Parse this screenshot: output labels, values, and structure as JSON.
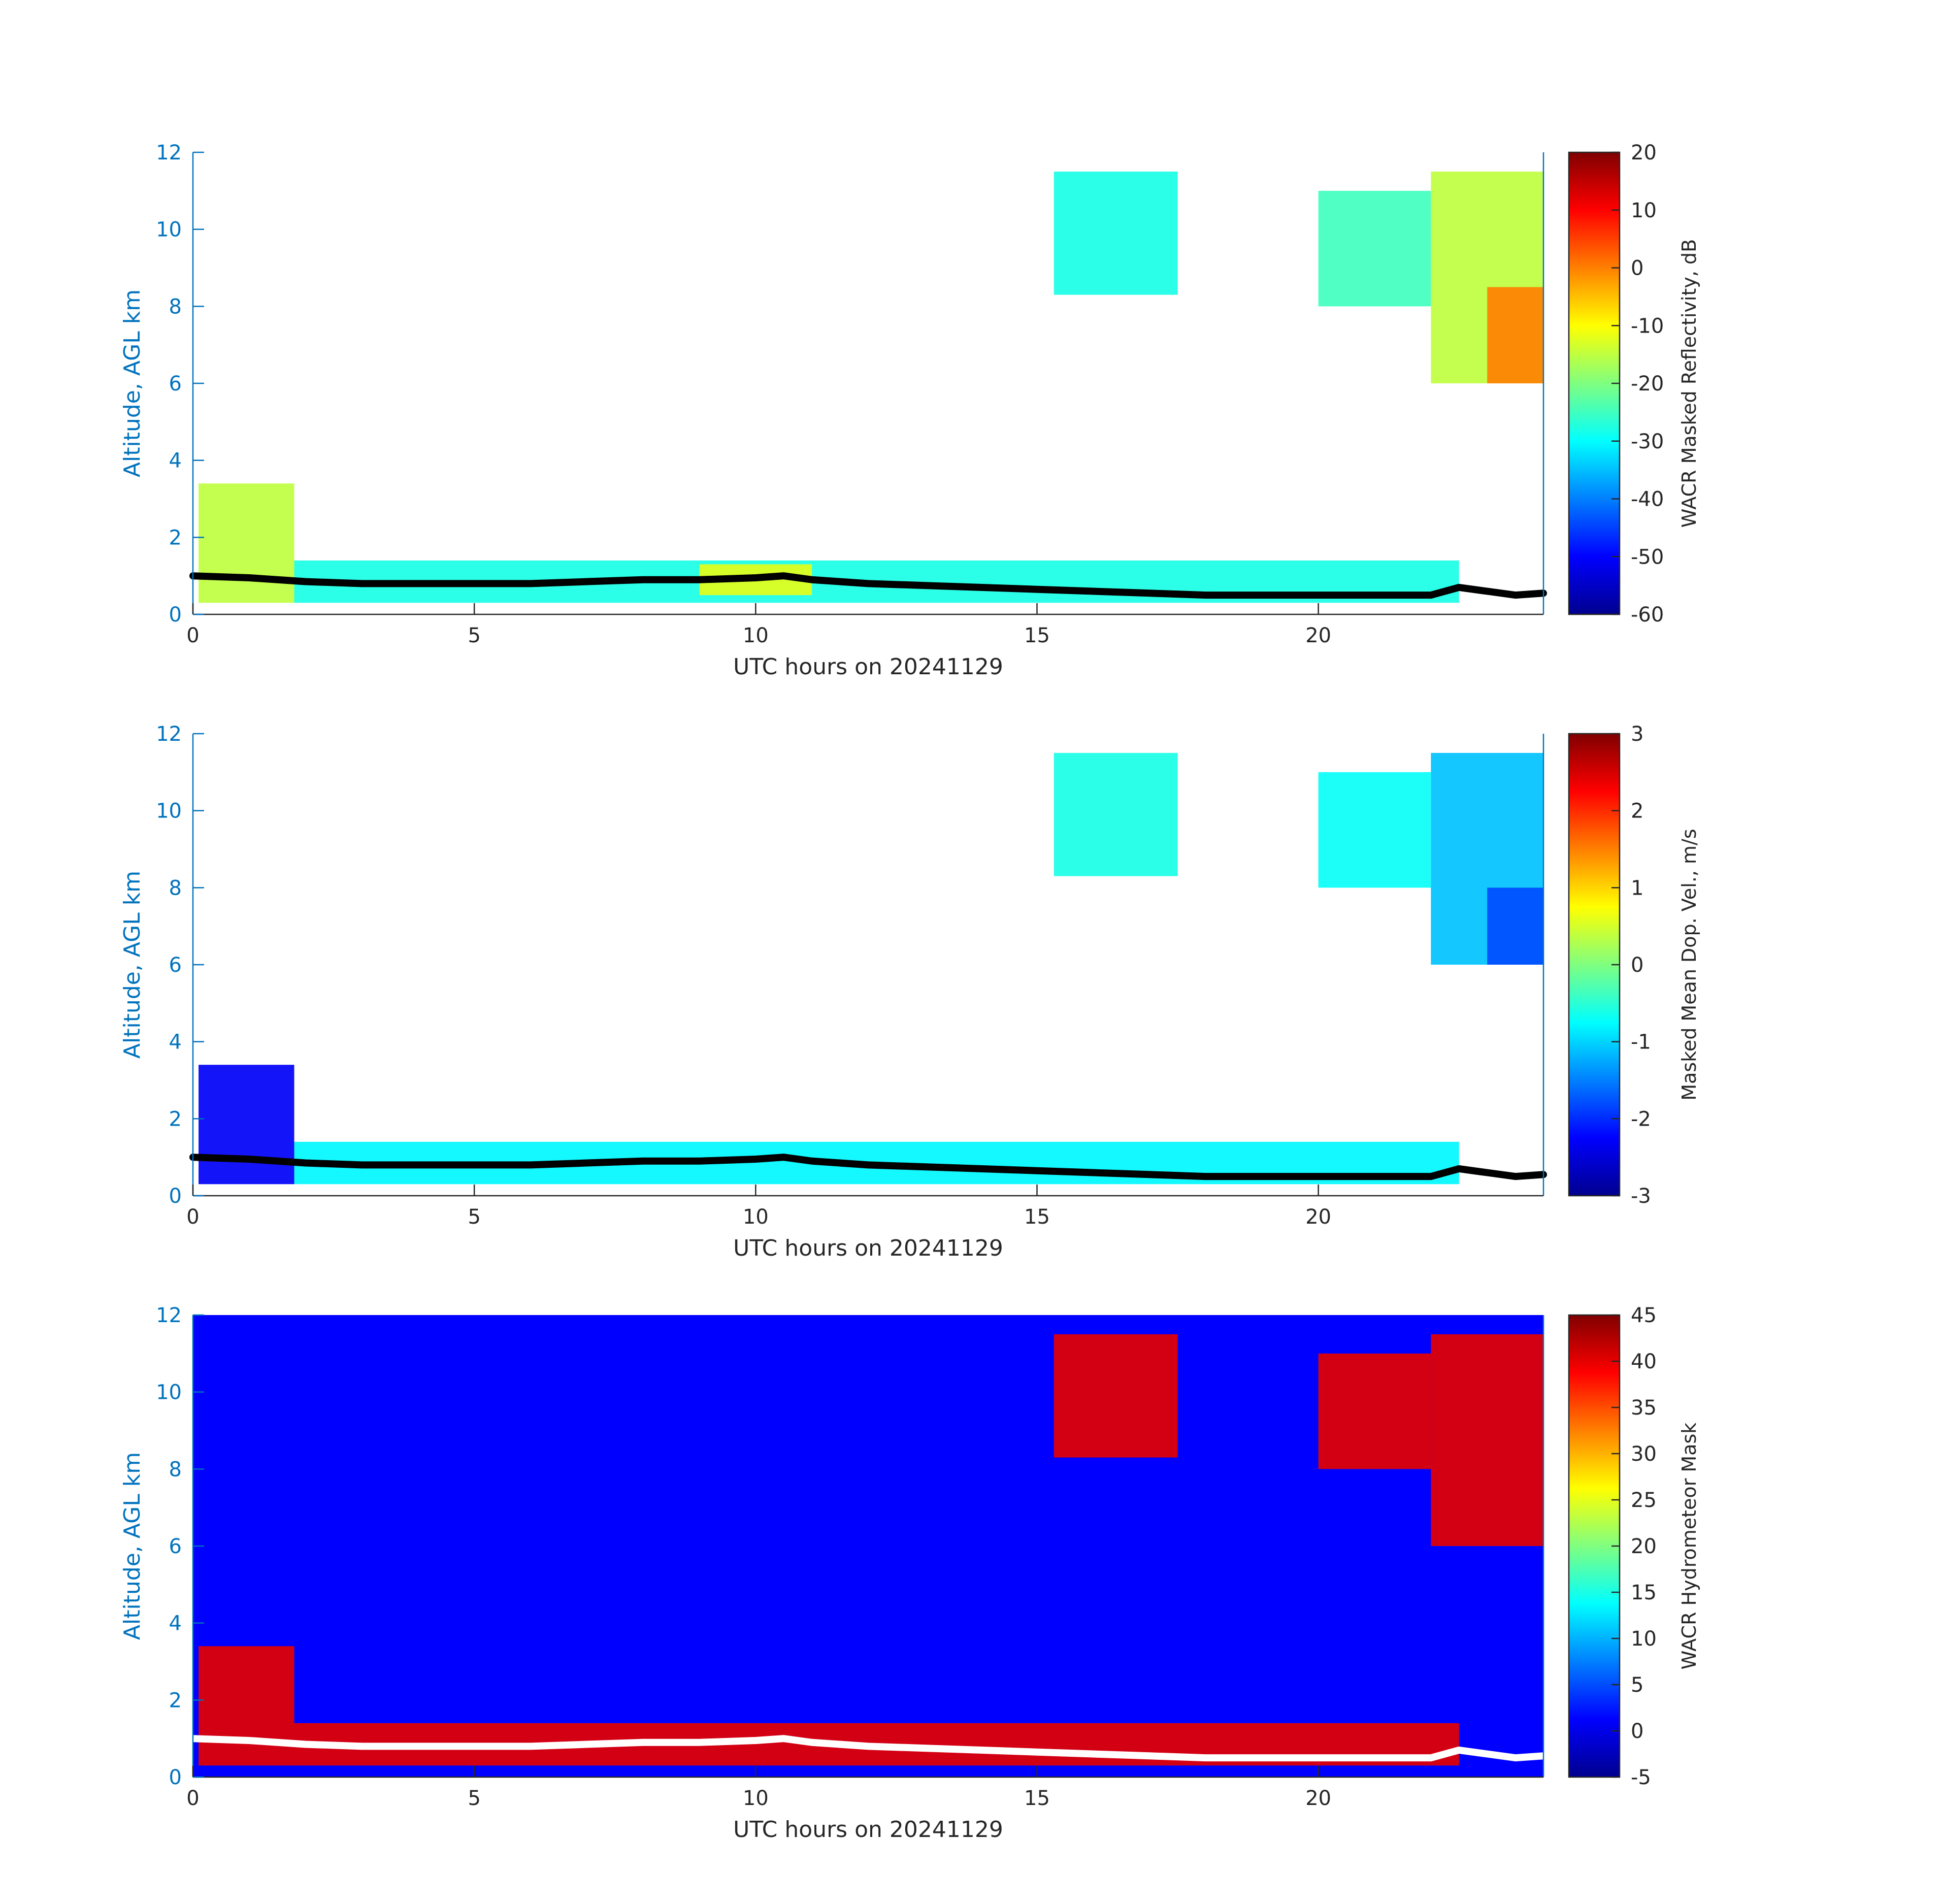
{
  "chart_data": [
    {
      "type": "heatmap",
      "title": "",
      "xlabel": "UTC hours on 20241129",
      "ylabel": "Altitude, AGL km",
      "xlim": [
        0,
        24
      ],
      "ylim": [
        0,
        12
      ],
      "xticks": [
        0,
        5,
        10,
        15,
        20
      ],
      "yticks": [
        0,
        2,
        4,
        6,
        8,
        10,
        12
      ],
      "background": "white",
      "colormap": "jet",
      "line_color": "#000000",
      "colorbar": {
        "label": "WACR Masked Reflectivity, dB",
        "range": [
          -60,
          20
        ],
        "ticks": [
          20,
          10,
          0,
          -10,
          -20,
          -30,
          -40,
          -50,
          -60
        ]
      },
      "cloud_base_line": {
        "x": [
          0,
          1,
          2,
          3,
          4,
          5,
          6,
          7,
          8,
          9,
          10,
          10.5,
          11,
          12,
          13,
          14,
          15,
          16,
          17,
          18,
          19,
          20,
          21,
          22,
          22.5,
          23,
          23.5,
          24
        ],
        "y": [
          1.0,
          0.95,
          0.85,
          0.8,
          0.8,
          0.8,
          0.8,
          0.85,
          0.9,
          0.9,
          0.95,
          1.0,
          0.9,
          0.8,
          0.75,
          0.7,
          0.65,
          0.6,
          0.55,
          0.5,
          0.5,
          0.5,
          0.5,
          0.5,
          0.7,
          0.6,
          0.5,
          0.55
        ]
      },
      "regions": [
        {
          "x": [
            0.1,
            1.8
          ],
          "y": [
            0.3,
            3.4
          ],
          "value": -15
        },
        {
          "x": [
            1.8,
            22.5
          ],
          "y": [
            0.3,
            1.4
          ],
          "value": -28
        },
        {
          "x": [
            9.0,
            11.0
          ],
          "y": [
            0.5,
            1.3
          ],
          "value": -12
        },
        {
          "x": [
            15.3,
            17.5
          ],
          "y": [
            8.3,
            11.5
          ],
          "value": -28
        },
        {
          "x": [
            20.0,
            22.0
          ],
          "y": [
            8.0,
            11.0
          ],
          "value": -25
        },
        {
          "x": [
            22.0,
            24.0
          ],
          "y": [
            6.0,
            11.5
          ],
          "value": -15
        },
        {
          "x": [
            23.0,
            24.0
          ],
          "y": [
            6.0,
            8.5
          ],
          "value": 0
        }
      ]
    },
    {
      "type": "heatmap",
      "title": "",
      "xlabel": "UTC hours on 20241129",
      "ylabel": "Altitude, AGL km",
      "xlim": [
        0,
        24
      ],
      "ylim": [
        0,
        12
      ],
      "xticks": [
        0,
        5,
        10,
        15,
        20
      ],
      "yticks": [
        0,
        2,
        4,
        6,
        8,
        10,
        12
      ],
      "background": "white",
      "colormap": "jet",
      "line_color": "#000000",
      "colorbar": {
        "label": "Masked Mean Dop. Vel., m/s",
        "range": [
          -3,
          3
        ],
        "ticks": [
          3,
          2,
          1,
          0,
          -1,
          -2,
          -3
        ]
      },
      "cloud_base_line": {
        "x": [
          0,
          1,
          2,
          3,
          4,
          5,
          6,
          7,
          8,
          9,
          10,
          10.5,
          11,
          12,
          13,
          14,
          15,
          16,
          17,
          18,
          19,
          20,
          21,
          22,
          22.5,
          23,
          23.5,
          24
        ],
        "y": [
          1.0,
          0.95,
          0.85,
          0.8,
          0.8,
          0.8,
          0.8,
          0.85,
          0.9,
          0.9,
          0.95,
          1.0,
          0.9,
          0.8,
          0.75,
          0.7,
          0.65,
          0.6,
          0.55,
          0.5,
          0.5,
          0.5,
          0.5,
          0.5,
          0.7,
          0.6,
          0.5,
          0.55
        ]
      },
      "regions": [
        {
          "x": [
            0.1,
            1.8
          ],
          "y": [
            0.3,
            3.4
          ],
          "value": -2.3
        },
        {
          "x": [
            1.8,
            22.5
          ],
          "y": [
            0.3,
            1.4
          ],
          "value": -0.8
        },
        {
          "x": [
            15.3,
            17.5
          ],
          "y": [
            8.3,
            11.5
          ],
          "value": -0.6
        },
        {
          "x": [
            20.0,
            22.0
          ],
          "y": [
            8.0,
            11.0
          ],
          "value": -0.7
        },
        {
          "x": [
            22.0,
            24.0
          ],
          "y": [
            6.0,
            11.5
          ],
          "value": -1.1
        },
        {
          "x": [
            23.0,
            24.0
          ],
          "y": [
            6.0,
            8.0
          ],
          "value": -1.8
        }
      ]
    },
    {
      "type": "heatmap",
      "title": "",
      "xlabel": "UTC hours on 20241129",
      "ylabel": "Altitude, AGL km",
      "xlim": [
        0,
        24
      ],
      "ylim": [
        0,
        12
      ],
      "xticks": [
        0,
        5,
        10,
        15,
        20
      ],
      "yticks": [
        0,
        2,
        4,
        6,
        8,
        10,
        12
      ],
      "background": "blue",
      "colormap": "jet",
      "line_color": "#ffffff",
      "colorbar": {
        "label": "WACR Hydrometeor Mask",
        "range": [
          -5,
          45
        ],
        "ticks": [
          45,
          40,
          35,
          30,
          25,
          20,
          15,
          10,
          5,
          0,
          -5
        ]
      },
      "cloud_base_line": {
        "x": [
          0,
          1,
          2,
          3,
          4,
          5,
          6,
          7,
          8,
          9,
          10,
          10.5,
          11,
          12,
          13,
          14,
          15,
          16,
          17,
          18,
          19,
          20,
          21,
          22,
          22.5,
          23,
          23.5,
          24
        ],
        "y": [
          1.0,
          0.95,
          0.85,
          0.8,
          0.8,
          0.8,
          0.8,
          0.85,
          0.9,
          0.9,
          0.95,
          1.0,
          0.9,
          0.8,
          0.75,
          0.7,
          0.65,
          0.6,
          0.55,
          0.5,
          0.5,
          0.5,
          0.5,
          0.5,
          0.7,
          0.6,
          0.5,
          0.55
        ]
      },
      "regions": [
        {
          "x": [
            0.1,
            1.8
          ],
          "y": [
            0.3,
            3.4
          ],
          "value": 40
        },
        {
          "x": [
            1.8,
            22.5
          ],
          "y": [
            0.3,
            1.4
          ],
          "value": 40
        },
        {
          "x": [
            15.3,
            17.5
          ],
          "y": [
            8.3,
            11.5
          ],
          "value": 40
        },
        {
          "x": [
            20.0,
            22.0
          ],
          "y": [
            8.0,
            11.0
          ],
          "value": 40
        },
        {
          "x": [
            22.0,
            24.0
          ],
          "y": [
            6.0,
            11.5
          ],
          "value": 40
        }
      ]
    }
  ]
}
